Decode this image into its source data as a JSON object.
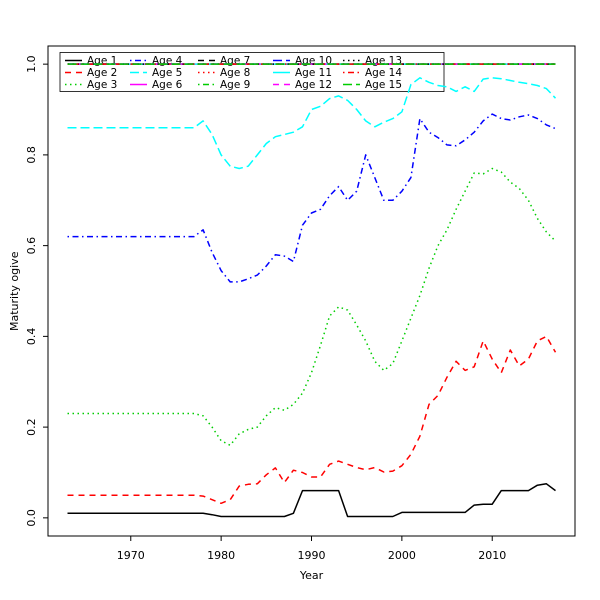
{
  "figure": {
    "background": "#FFFFFF",
    "xlabel": "Year",
    "ylabel": "Maturity ogive"
  },
  "chart_data": {
    "type": "line",
    "title": "",
    "xlabel": "Year",
    "ylabel": "Maturity ogive",
    "xlim": [
      1960.84,
      2019.16
    ],
    "ylim": [
      -0.04,
      1.04
    ],
    "x_ticks": [
      1970,
      1980,
      1990,
      2000,
      2010
    ],
    "y_ticks": [
      0.0,
      0.2,
      0.4,
      0.6,
      0.8,
      1.0
    ],
    "y_tick_labels": [
      "0.0",
      "0.2",
      "0.4",
      "0.6",
      "0.8",
      "1.0"
    ],
    "grid": false,
    "legend_position": "top-left",
    "legend_columns": 5,
    "legend_rows": 3,
    "x": [
      1963,
      1964,
      1965,
      1966,
      1967,
      1968,
      1969,
      1970,
      1971,
      1972,
      1973,
      1974,
      1975,
      1976,
      1977,
      1978,
      1979,
      1980,
      1981,
      1982,
      1983,
      1984,
      1985,
      1986,
      1987,
      1988,
      1989,
      1990,
      1991,
      1992,
      1993,
      1994,
      1995,
      1996,
      1997,
      1998,
      1999,
      2000,
      2001,
      2002,
      2003,
      2004,
      2005,
      2006,
      2007,
      2008,
      2009,
      2010,
      2011,
      2012,
      2013,
      2014,
      2015,
      2016,
      2017
    ],
    "series": [
      {
        "name": "Age 1",
        "color": "#000000",
        "linetype": "solid",
        "values": [
          0.01,
          0.01,
          0.01,
          0.01,
          0.01,
          0.01,
          0.01,
          0.01,
          0.01,
          0.01,
          0.01,
          0.01,
          0.01,
          0.01,
          0.01,
          0.01,
          0.007,
          0.003,
          0.003,
          0.003,
          0.003,
          0.003,
          0.003,
          0.003,
          0.003,
          0.01,
          0.06,
          0.06,
          0.06,
          0.06,
          0.06,
          0.003,
          0.003,
          0.003,
          0.003,
          0.003,
          0.003,
          0.012,
          0.012,
          0.012,
          0.012,
          0.012,
          0.012,
          0.012,
          0.012,
          0.028,
          0.03,
          0.03,
          0.06,
          0.06,
          0.06,
          0.06,
          0.072,
          0.075,
          0.06
        ]
      },
      {
        "name": "Age 2",
        "color": "#FF0000",
        "linetype": "dashed",
        "values": [
          0.05,
          0.05,
          0.05,
          0.05,
          0.05,
          0.05,
          0.05,
          0.05,
          0.05,
          0.05,
          0.05,
          0.05,
          0.05,
          0.05,
          0.05,
          0.048,
          0.04,
          0.032,
          0.04,
          0.07,
          0.074,
          0.075,
          0.095,
          0.11,
          0.078,
          0.105,
          0.1,
          0.09,
          0.09,
          0.118,
          0.125,
          0.118,
          0.111,
          0.106,
          0.111,
          0.101,
          0.103,
          0.115,
          0.14,
          0.18,
          0.25,
          0.27,
          0.31,
          0.345,
          0.325,
          0.333,
          0.39,
          0.35,
          0.32,
          0.37,
          0.335,
          0.35,
          0.39,
          0.4,
          0.365
        ]
      },
      {
        "name": "Age 3",
        "color": "#00CD00",
        "linetype": "dotted",
        "values": [
          0.23,
          0.23,
          0.23,
          0.23,
          0.23,
          0.23,
          0.23,
          0.23,
          0.23,
          0.23,
          0.23,
          0.23,
          0.23,
          0.23,
          0.23,
          0.225,
          0.2,
          0.17,
          0.16,
          0.185,
          0.195,
          0.2,
          0.225,
          0.243,
          0.237,
          0.25,
          0.275,
          0.32,
          0.38,
          0.445,
          0.465,
          0.458,
          0.425,
          0.39,
          0.345,
          0.325,
          0.34,
          0.39,
          0.44,
          0.49,
          0.55,
          0.6,
          0.635,
          0.68,
          0.72,
          0.76,
          0.758,
          0.77,
          0.762,
          0.74,
          0.726,
          0.7,
          0.66,
          0.63,
          0.61
        ]
      },
      {
        "name": "Age 4",
        "color": "#0000FF",
        "linetype": "dotdash",
        "values": [
          0.62,
          0.62,
          0.62,
          0.62,
          0.62,
          0.62,
          0.62,
          0.62,
          0.62,
          0.62,
          0.62,
          0.62,
          0.62,
          0.62,
          0.62,
          0.635,
          0.585,
          0.545,
          0.52,
          0.52,
          0.527,
          0.535,
          0.555,
          0.58,
          0.577,
          0.565,
          0.645,
          0.672,
          0.68,
          0.71,
          0.73,
          0.7,
          0.72,
          0.8,
          0.75,
          0.7,
          0.7,
          0.72,
          0.75,
          0.88,
          0.85,
          0.838,
          0.822,
          0.82,
          0.833,
          0.85,
          0.875,
          0.89,
          0.88,
          0.877,
          0.884,
          0.888,
          0.88,
          0.866,
          0.858
        ]
      },
      {
        "name": "Age 5",
        "color": "#00FFFF",
        "linetype": "longdash",
        "values": [
          0.86,
          0.86,
          0.86,
          0.86,
          0.86,
          0.86,
          0.86,
          0.86,
          0.86,
          0.86,
          0.86,
          0.86,
          0.86,
          0.86,
          0.86,
          0.875,
          0.845,
          0.8,
          0.775,
          0.77,
          0.775,
          0.8,
          0.825,
          0.84,
          0.845,
          0.85,
          0.862,
          0.9,
          0.907,
          0.924,
          0.93,
          0.92,
          0.9,
          0.875,
          0.862,
          0.872,
          0.88,
          0.895,
          0.955,
          0.97,
          0.96,
          0.953,
          0.95,
          0.94,
          0.95,
          0.94,
          0.967,
          0.97,
          0.968,
          0.964,
          0.96,
          0.957,
          0.953,
          0.946,
          0.925
        ]
      },
      {
        "name": "Age 6",
        "color": "#FF00FF",
        "linetype": "solid",
        "constant": 1.0
      },
      {
        "name": "Age 7",
        "color": "#000000",
        "linetype": "dashed",
        "constant": 1.0
      },
      {
        "name": "Age 8",
        "color": "#FF0000",
        "linetype": "dotted",
        "constant": 1.0
      },
      {
        "name": "Age 9",
        "color": "#00CD00",
        "linetype": "dotdash",
        "constant": 1.0
      },
      {
        "name": "Age 10",
        "color": "#0000FF",
        "linetype": "longdash",
        "constant": 1.0
      },
      {
        "name": "Age 11",
        "color": "#00FFFF",
        "linetype": "solid",
        "constant": 1.0
      },
      {
        "name": "Age 12",
        "color": "#FF00FF",
        "linetype": "dashed",
        "constant": 1.0
      },
      {
        "name": "Age 13",
        "color": "#000000",
        "linetype": "dotted",
        "constant": 1.0
      },
      {
        "name": "Age 14",
        "color": "#FF0000",
        "linetype": "dotdash",
        "constant": 1.0
      },
      {
        "name": "Age 15",
        "color": "#00CD00",
        "linetype": "longdash",
        "constant": 1.0
      }
    ]
  }
}
